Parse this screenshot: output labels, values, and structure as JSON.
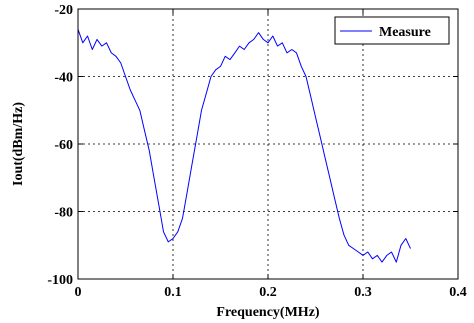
{
  "chart_data": {
    "type": "line",
    "title": "",
    "xlabel": "Frequency(MHz)",
    "ylabel": "Iout(dBm/Hz)",
    "xlim": [
      0,
      0.4
    ],
    "ylim": [
      -100,
      -20
    ],
    "xticks": [
      0,
      0.1,
      0.2,
      0.3,
      0.4
    ],
    "xtick_labels": [
      "0",
      "0.1",
      "0.2",
      "0.3",
      "0.4"
    ],
    "yticks": [
      -100,
      -80,
      -60,
      -40,
      -20
    ],
    "ytick_labels": [
      "-100",
      "-80",
      "-60",
      "-40",
      "-20"
    ],
    "grid": true,
    "grid_style": "dotted",
    "legend_position": "top-right",
    "series": [
      {
        "name": "Measure",
        "color": "#0000ff",
        "x": [
          0,
          0.005,
          0.01,
          0.015,
          0.02,
          0.025,
          0.03,
          0.035,
          0.04,
          0.045,
          0.05,
          0.055,
          0.06,
          0.065,
          0.07,
          0.075,
          0.08,
          0.085,
          0.09,
          0.095,
          0.1,
          0.105,
          0.11,
          0.115,
          0.12,
          0.125,
          0.13,
          0.135,
          0.14,
          0.145,
          0.15,
          0.155,
          0.16,
          0.165,
          0.17,
          0.175,
          0.18,
          0.185,
          0.19,
          0.195,
          0.2,
          0.205,
          0.21,
          0.215,
          0.22,
          0.225,
          0.23,
          0.235,
          0.24,
          0.245,
          0.25,
          0.255,
          0.26,
          0.265,
          0.27,
          0.275,
          0.28,
          0.285,
          0.29,
          0.295,
          0.3,
          0.305,
          0.31,
          0.315,
          0.32,
          0.325,
          0.33,
          0.335,
          0.34,
          0.345,
          0.35
        ],
        "values": [
          -26,
          -30,
          -28,
          -32,
          -29,
          -31,
          -30,
          -33,
          -34,
          -36,
          -40,
          -44,
          -47,
          -50,
          -56,
          -62,
          -70,
          -78,
          -86,
          -89,
          -88,
          -86,
          -82,
          -74,
          -66,
          -58,
          -50,
          -45,
          -40,
          -38,
          -37,
          -34,
          -35,
          -33,
          -31,
          -32,
          -30,
          -29,
          -27,
          -29,
          -30,
          -28,
          -31,
          -30,
          -33,
          -32,
          -33,
          -37,
          -40,
          -46,
          -52,
          -58,
          -64,
          -70,
          -76,
          -82,
          -87,
          -90,
          -91,
          -92,
          -93,
          -92,
          -94,
          -93,
          -95,
          -93,
          -92,
          -95,
          -90,
          -88,
          -91
        ]
      }
    ]
  }
}
